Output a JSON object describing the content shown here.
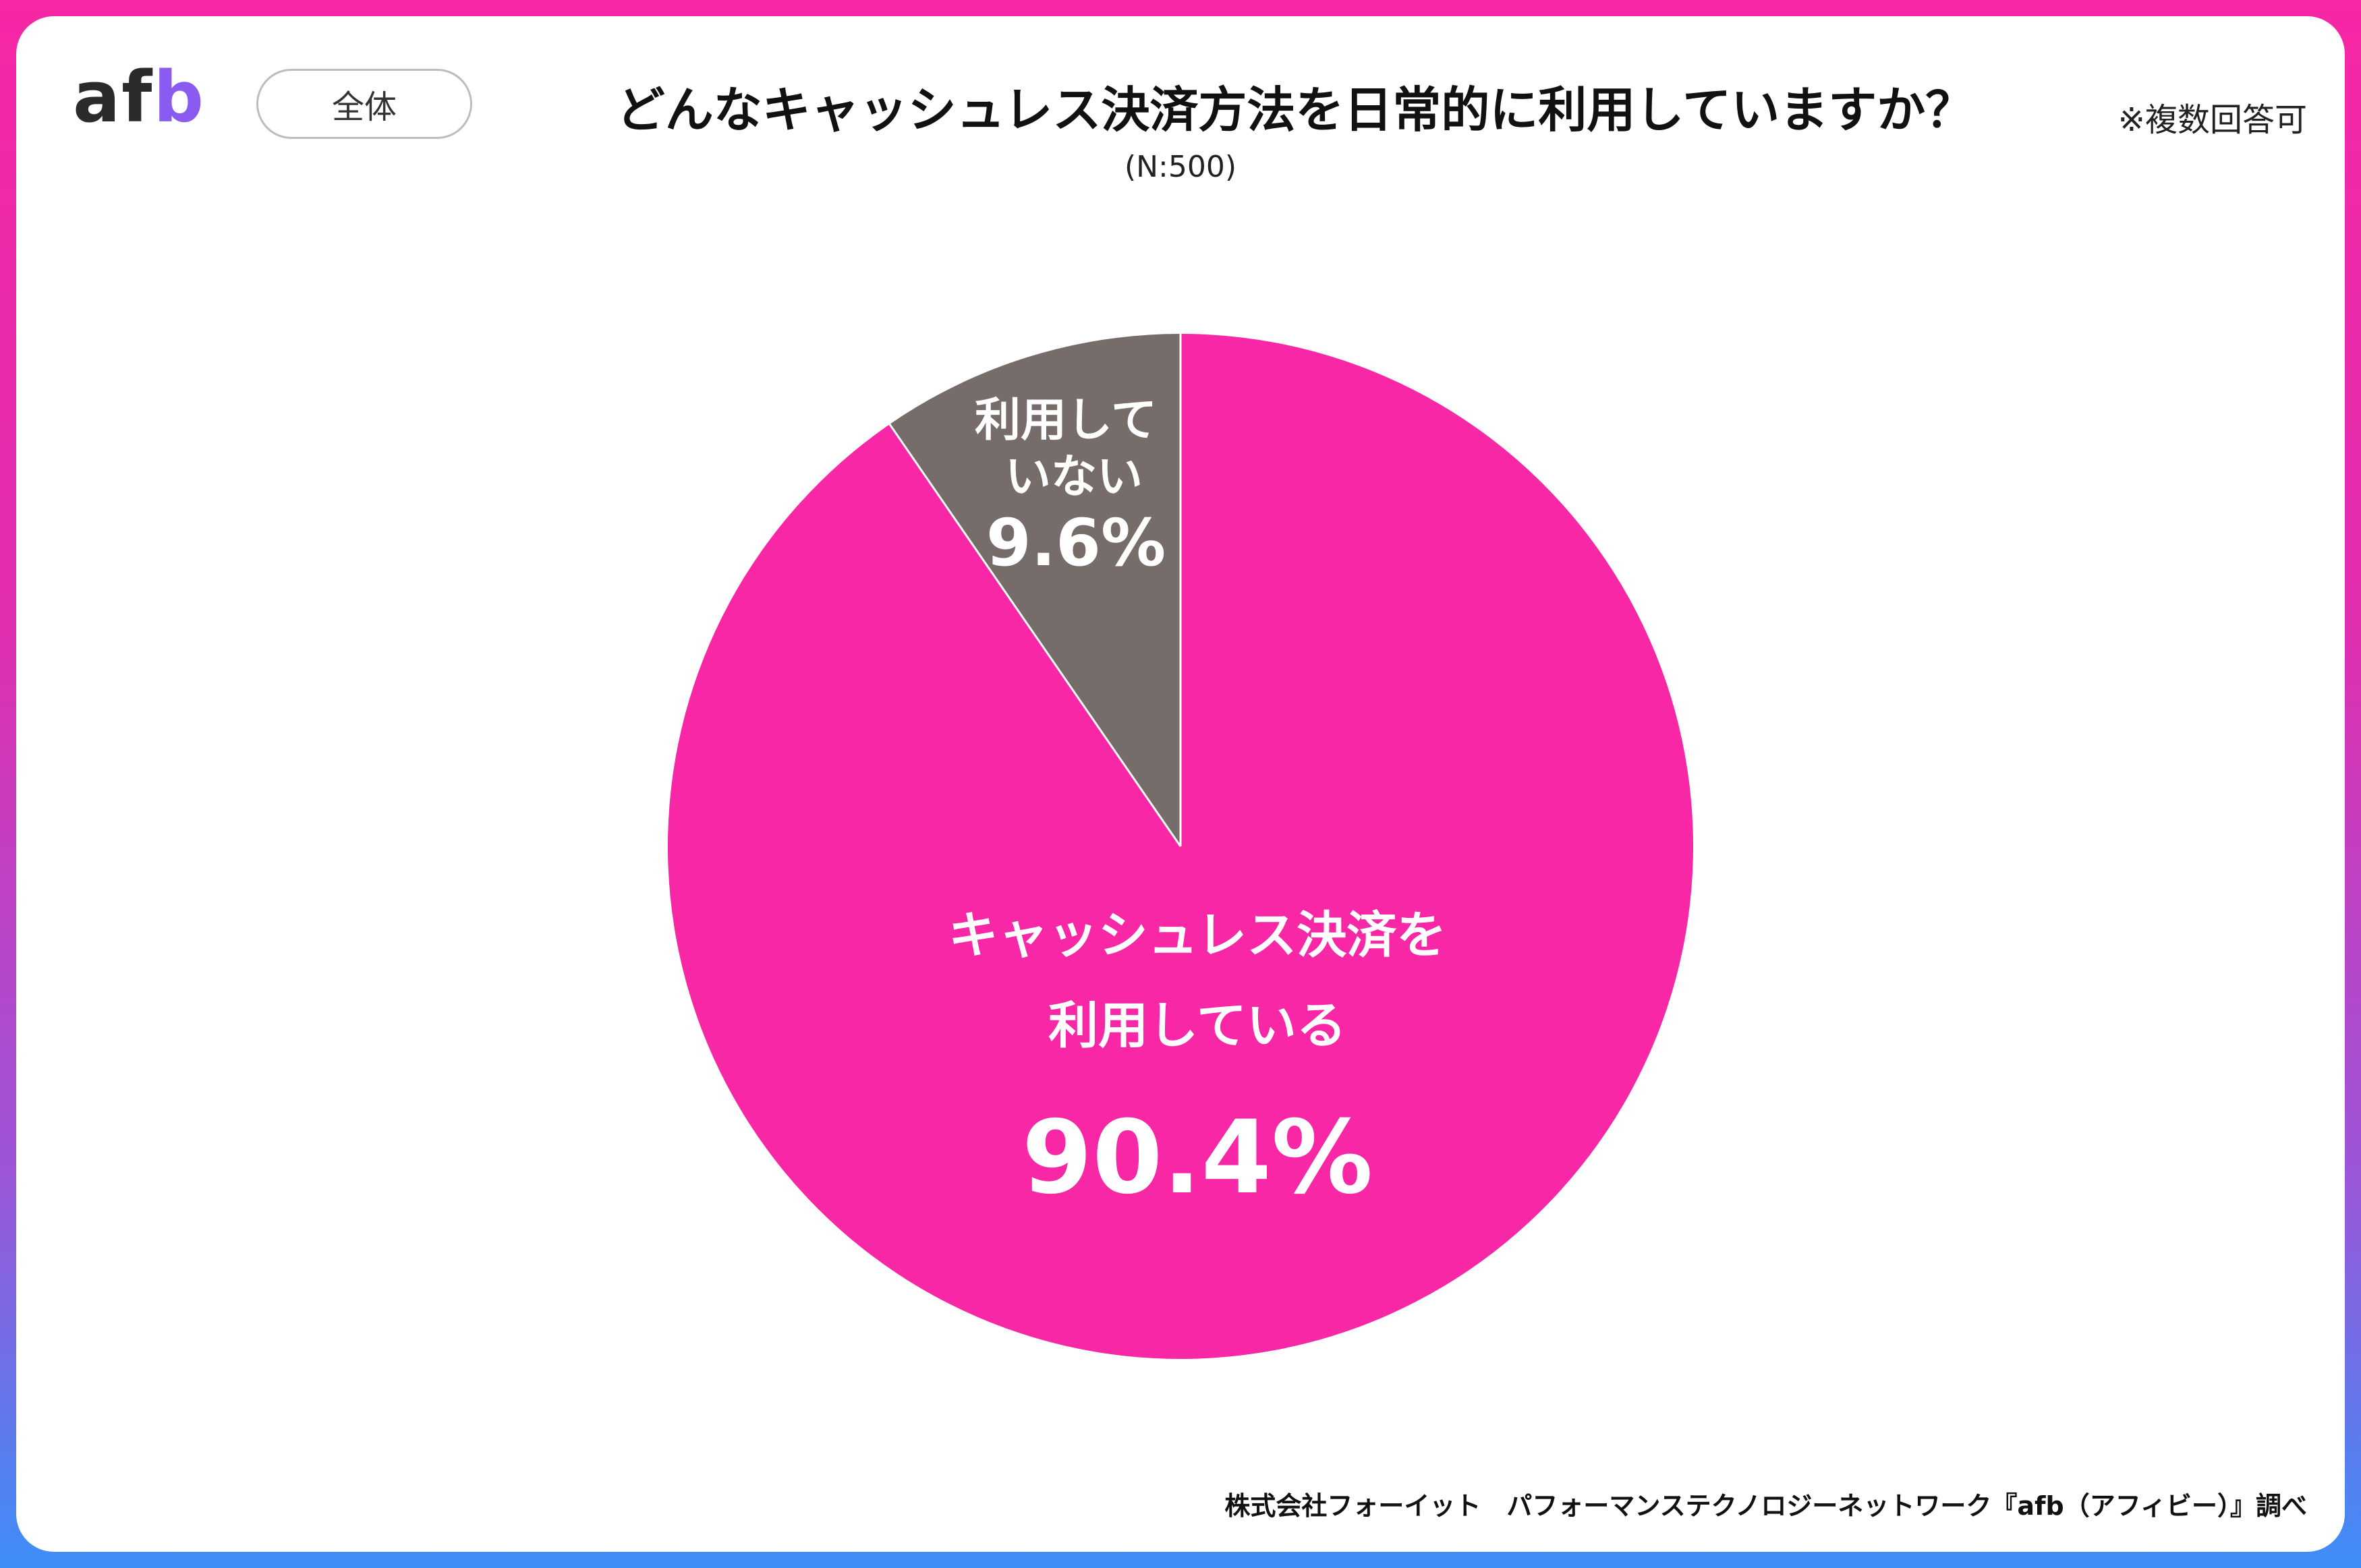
{
  "brand": {
    "logo_main": "af",
    "logo_accent": "b"
  },
  "badge": {
    "label": "全体"
  },
  "header": {
    "title": "どんなキャッシュレス決済方法を日常的に利用していますか？",
    "note": "※複数回答可",
    "sample": "(N:500)"
  },
  "footer": {
    "source": "株式会社フォーイット　パフォーマンステクノロジーネットワーク『afb（アフィビー）』調べ"
  },
  "colors": {
    "primary": "#f727a5",
    "secondary": "#766d6b",
    "frame_top": "#f727a5",
    "frame_bottom": "#3e8ef7"
  },
  "chart_data": {
    "type": "pie",
    "start": "12 o'clock",
    "direction": "clockwise",
    "legend": "none",
    "slices": [
      {
        "label_lines": [
          "キャッシュレス決済を",
          "利用している"
        ],
        "value": 90.4,
        "value_label": "90.4%",
        "color": "#f727a5"
      },
      {
        "label_lines": [
          "利用して",
          "いない"
        ],
        "value": 9.6,
        "value_label": "9.6%",
        "color": "#766d6b"
      }
    ]
  }
}
